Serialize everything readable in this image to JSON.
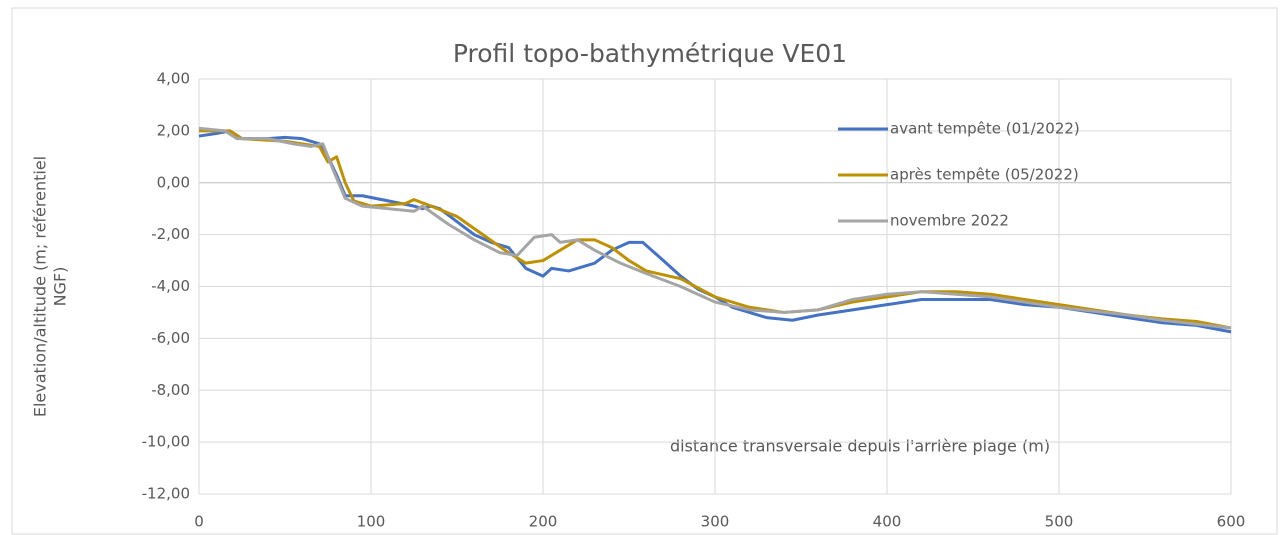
{
  "chart_data": {
    "type": "line",
    "title": "Profil topo-bathymétrique VE01",
    "y_label": "Elevation/altitude (m; référentiel NGF)",
    "x_label": "distance transversale depuis l'arrière plage (m)",
    "xlim": [
      0,
      600
    ],
    "xticks": [
      0,
      100,
      200,
      300,
      400,
      500,
      600
    ],
    "ylim": [
      -12,
      4
    ],
    "yticks": [
      {
        "value": 4,
        "label": "4,00"
      },
      {
        "value": 2,
        "label": "2,00"
      },
      {
        "value": 0,
        "label": "0,00"
      },
      {
        "value": -2,
        "label": "-2,00"
      },
      {
        "value": -4,
        "label": "-4,00"
      },
      {
        "value": -6,
        "label": "-6,00"
      },
      {
        "value": -8,
        "label": "-8,00"
      },
      {
        "value": -10,
        "label": "-10,00"
      },
      {
        "value": -12,
        "label": "-12,00"
      }
    ],
    "grid": true,
    "legend": "upper right",
    "series": [
      {
        "name": "avant tempête (01/2022)",
        "color": "#4472c4",
        "x": [
          0,
          10,
          18,
          25,
          40,
          50,
          60,
          70,
          75,
          80,
          85,
          95,
          110,
          125,
          130,
          135,
          140,
          150,
          160,
          170,
          180,
          190,
          200,
          205,
          215,
          230,
          240,
          250,
          258,
          270,
          280,
          290,
          300,
          310,
          320,
          330,
          345,
          360,
          380,
          400,
          420,
          440,
          460,
          480,
          500,
          520,
          540,
          560,
          580,
          600
        ],
        "values": [
          1.8,
          1.9,
          2.0,
          1.7,
          1.7,
          1.75,
          1.7,
          1.5,
          1.0,
          0.3,
          -0.5,
          -0.5,
          -0.7,
          -0.9,
          -1.0,
          -0.9,
          -1.0,
          -1.5,
          -2.0,
          -2.3,
          -2.5,
          -3.3,
          -3.6,
          -3.3,
          -3.4,
          -3.1,
          -2.6,
          -2.3,
          -2.3,
          -3.0,
          -3.6,
          -4.1,
          -4.4,
          -4.8,
          -5.0,
          -5.2,
          -5.3,
          -5.1,
          -4.9,
          -4.7,
          -4.5,
          -4.5,
          -4.5,
          -4.7,
          -4.8,
          -5.0,
          -5.2,
          -5.4,
          -5.5,
          -5.75
        ]
      },
      {
        "name": "après tempête (05/2022)",
        "color": "#bf9000",
        "x": [
          0,
          18,
          25,
          50,
          70,
          75,
          80,
          85,
          90,
          100,
          120,
          125,
          135,
          150,
          165,
          180,
          190,
          200,
          210,
          220,
          230,
          240,
          250,
          260,
          280,
          300,
          320,
          340,
          360,
          380,
          400,
          420,
          440,
          460,
          480,
          500,
          520,
          540,
          560,
          580,
          600
        ],
        "values": [
          2.0,
          2.0,
          1.7,
          1.6,
          1.4,
          0.8,
          1.0,
          0.0,
          -0.7,
          -0.9,
          -0.8,
          -0.65,
          -0.9,
          -1.3,
          -2.0,
          -2.7,
          -3.1,
          -3.0,
          -2.6,
          -2.2,
          -2.2,
          -2.5,
          -3.0,
          -3.4,
          -3.7,
          -4.4,
          -4.8,
          -5.0,
          -4.9,
          -4.6,
          -4.4,
          -4.2,
          -4.2,
          -4.3,
          -4.5,
          -4.7,
          -4.9,
          -5.1,
          -5.25,
          -5.35,
          -5.6
        ]
      },
      {
        "name": "novembre 2022",
        "color": "#a5a5a5",
        "x": [
          0,
          15,
          22,
          40,
          55,
          65,
          72,
          78,
          85,
          95,
          110,
          125,
          130,
          145,
          160,
          175,
          185,
          195,
          205,
          210,
          220,
          230,
          245,
          260,
          280,
          300,
          320,
          340,
          360,
          380,
          400,
          420,
          440,
          460,
          480,
          500,
          520,
          540,
          560,
          580,
          600
        ],
        "values": [
          2.1,
          2.0,
          1.7,
          1.7,
          1.5,
          1.4,
          1.5,
          0.5,
          -0.6,
          -0.9,
          -1.0,
          -1.1,
          -0.9,
          -1.6,
          -2.2,
          -2.7,
          -2.8,
          -2.1,
          -2.0,
          -2.3,
          -2.2,
          -2.6,
          -3.1,
          -3.5,
          -4.0,
          -4.6,
          -4.9,
          -5.0,
          -4.9,
          -4.5,
          -4.3,
          -4.2,
          -4.3,
          -4.4,
          -4.6,
          -4.8,
          -4.95,
          -5.1,
          -5.3,
          -5.45,
          -5.6
        ]
      }
    ]
  }
}
